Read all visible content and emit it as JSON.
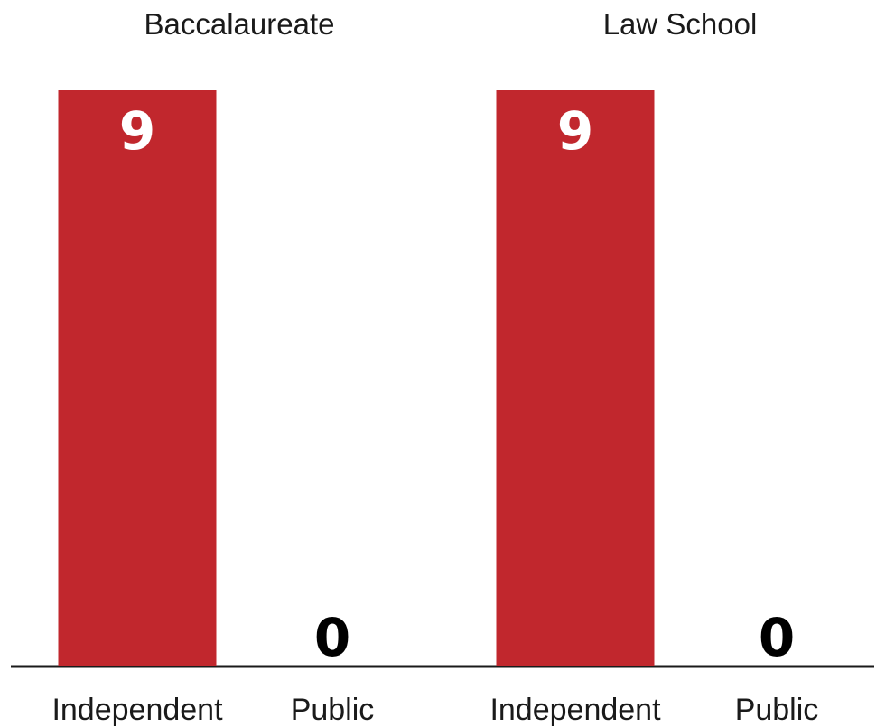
{
  "chart_data": [
    {
      "type": "bar",
      "title": "Baccalaureate",
      "categories": [
        "Independent",
        "Public"
      ],
      "values": [
        9,
        0
      ],
      "ylim": [
        0,
        9
      ]
    },
    {
      "type": "bar",
      "title": "Law School",
      "categories": [
        "Independent",
        "Public"
      ],
      "values": [
        9,
        0
      ],
      "ylim": [
        0,
        9
      ]
    }
  ],
  "colors": {
    "bar": "#c1272d",
    "label_inside": "#ffffff",
    "label_outside": "#000000",
    "axis": "#1a1a1a"
  }
}
